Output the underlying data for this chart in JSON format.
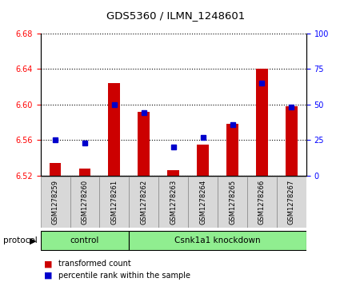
{
  "title": "GDS5360 / ILMN_1248601",
  "samples": [
    "GSM1278259",
    "GSM1278260",
    "GSM1278261",
    "GSM1278262",
    "GSM1278263",
    "GSM1278264",
    "GSM1278265",
    "GSM1278266",
    "GSM1278267"
  ],
  "red_values": [
    6.534,
    6.528,
    6.624,
    6.592,
    6.526,
    6.555,
    6.578,
    6.64,
    6.598
  ],
  "blue_percentiles": [
    25,
    23,
    50,
    44,
    20,
    27,
    36,
    65,
    48
  ],
  "y_min": 6.52,
  "y_max": 6.68,
  "y_ticks_red": [
    6.52,
    6.56,
    6.6,
    6.64,
    6.68
  ],
  "y_ticks_blue": [
    0,
    25,
    50,
    75,
    100
  ],
  "bar_color": "#CC0000",
  "blue_color": "#0000CC",
  "legend_red": "transformed count",
  "legend_blue": "percentile rank within the sample",
  "protocol_label": "protocol",
  "control_label": "control",
  "knockdown_label": "Csnk1a1 knockdown",
  "control_count": 3,
  "knockdown_count": 6,
  "group_color": "#90EE90",
  "sample_box_color": "#d8d8d8",
  "bar_width": 0.4
}
